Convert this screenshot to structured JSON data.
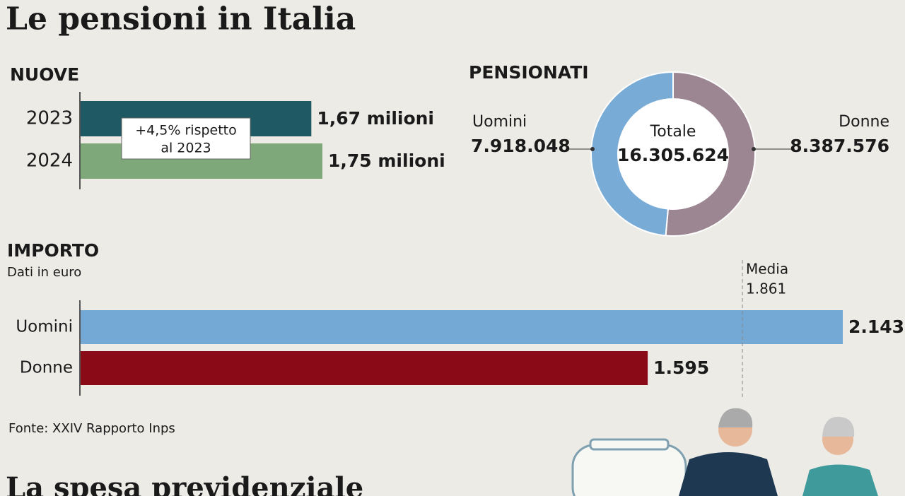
{
  "title": "Le pensioni in Italia",
  "source": "Fonte: XXIV Rapporto Inps",
  "next_section_title": "La spesa previdenziale",
  "chart_data": [
    {
      "type": "hbar",
      "title": "NUOVE",
      "categories": [
        "2023",
        "2024"
      ],
      "values": [
        1.67,
        1.75
      ],
      "value_labels": [
        "1,67 milioni",
        "1,75 milioni"
      ],
      "colors": [
        "#1f5963",
        "#7fa87a"
      ],
      "annotation": [
        "+4,5% rispetto",
        "al 2023"
      ]
    },
    {
      "type": "donut",
      "title": "PENSIONATI",
      "categories": [
        "Uomini",
        "Donne"
      ],
      "values": [
        7918048,
        8387576
      ],
      "value_labels": [
        "7.918.048",
        "8.387.576"
      ],
      "colors": [
        "#78abd6",
        "#9b8691"
      ],
      "center_label": "Totale",
      "total": 16305624,
      "total_label": "16.305.624"
    },
    {
      "type": "hbar",
      "title": "IMPORTO",
      "subtitle": "Dati in euro",
      "categories": [
        "Uomini",
        "Donne"
      ],
      "values": [
        2143,
        1595
      ],
      "value_labels": [
        "2.143",
        "1.595"
      ],
      "colors": [
        "#74a9d6",
        "#8a0a18"
      ],
      "reference": {
        "name": "Media",
        "value": 1861,
        "label": "1.861"
      }
    }
  ]
}
